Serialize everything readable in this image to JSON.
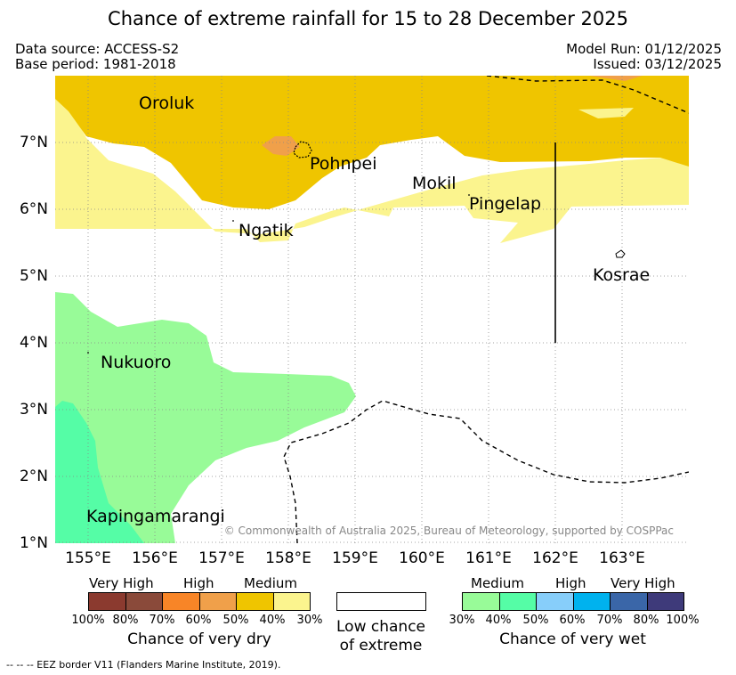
{
  "title": "Chance of extreme rainfall for 15 to 28 December 2025",
  "meta": {
    "data_source": "Data source: ACCESS-S2",
    "base_period": "Base period: 1981-2018",
    "model_run": "Model Run: 01/12/2025",
    "issued": "Issued: 03/12/2025"
  },
  "map": {
    "lat_labels": [
      "7°N",
      "6°N",
      "5°N",
      "4°N",
      "3°N",
      "2°N",
      "1°N"
    ],
    "lon_labels": [
      "155°E",
      "156°E",
      "157°E",
      "158°E",
      "159°E",
      "160°E",
      "161°E",
      "162°E",
      "163°E"
    ],
    "places": {
      "oroluk": "Oroluk",
      "pohnpei": "Pohnpei",
      "mokil": "Mokil",
      "pingelap": "Pingelap",
      "ngatik": "Ngatik",
      "kosrae": "Kosrae",
      "nukuoro": "Nukuoro",
      "kapingamarangi": "Kapingamarangi"
    },
    "copyright": "© Commonwealth of Australia 2025, Bureau of Meteorology, supported by COSPPac"
  },
  "legend": {
    "dry": {
      "levels": [
        "Very High",
        "High",
        "Medium"
      ],
      "ticks": [
        "100%",
        "80%",
        "70%",
        "60%",
        "50%",
        "40%",
        "30%"
      ],
      "colors": [
        "#8b3a2f",
        "#8a4a3a",
        "#f88527",
        "#f0a04a",
        "#efc500",
        "#fbf48e"
      ],
      "caption": "Chance of very dry"
    },
    "low": {
      "caption_line1": "Low chance",
      "caption_line2": "of extreme"
    },
    "wet": {
      "levels": [
        "Medium",
        "High",
        "Very High"
      ],
      "ticks": [
        "30%",
        "40%",
        "50%",
        "60%",
        "70%",
        "80%",
        "100%"
      ],
      "colors": [
        "#98fb98",
        "#55fda6",
        "#87cefa",
        "#00b2ee",
        "#3a66a8",
        "#3e3a7a"
      ],
      "caption": "Chance of very wet"
    }
  },
  "footnote": "--  --  -- EEZ border V11 (Flanders Marine Institute, 2019)."
}
